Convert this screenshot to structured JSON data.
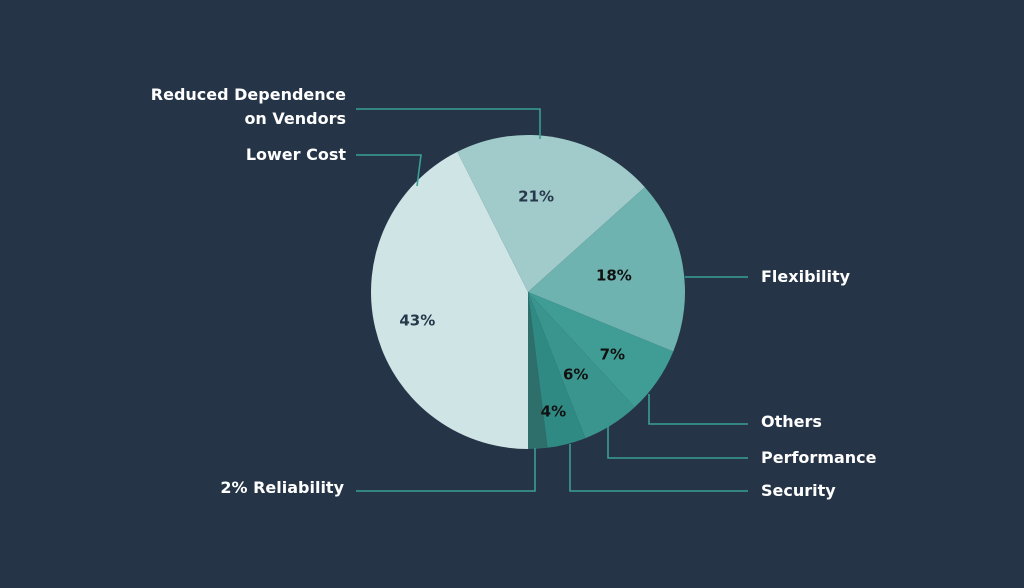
{
  "chart_data": {
    "type": "pie",
    "slices": [
      {
        "category": "Lower Cost",
        "value": 43,
        "label": "43%",
        "color": "#cfe4e5",
        "label_color": "#27384b",
        "callout": [
          "Lower Cost"
        ]
      },
      {
        "category": "Reduced Dependence on Vendors",
        "value": 21,
        "label": "21%",
        "color": "#a0cbca",
        "label_color": "#27384b",
        "callout": [
          "Reduced Dependence",
          "on Vendors"
        ]
      },
      {
        "category": "Flexibility",
        "value": 18,
        "label": "18%",
        "color": "#6fb3b0",
        "label_color": "#111111",
        "callout": [
          "Flexibility"
        ]
      },
      {
        "category": "Others",
        "value": 7,
        "label": "7%",
        "color": "#3f9d96",
        "label_color": "#111111",
        "callout": [
          "Others"
        ]
      },
      {
        "category": "Performance",
        "value": 6,
        "label": "6%",
        "color": "#3a958e",
        "label_color": "#111111",
        "callout": [
          "Performance"
        ]
      },
      {
        "category": "Security",
        "value": 4,
        "label": "4%",
        "color": "#2f8a84",
        "label_color": "#111111",
        "callout": [
          "Security"
        ]
      },
      {
        "category": "Reliability",
        "value": 2,
        "label": "",
        "color": "#2e6f6c",
        "label_color": "#111111",
        "callout": [
          "2% Reliability"
        ]
      }
    ]
  },
  "colors": {
    "background": "#253447",
    "leader_line": "#3a9e95",
    "callout_text": "#ffffff"
  }
}
